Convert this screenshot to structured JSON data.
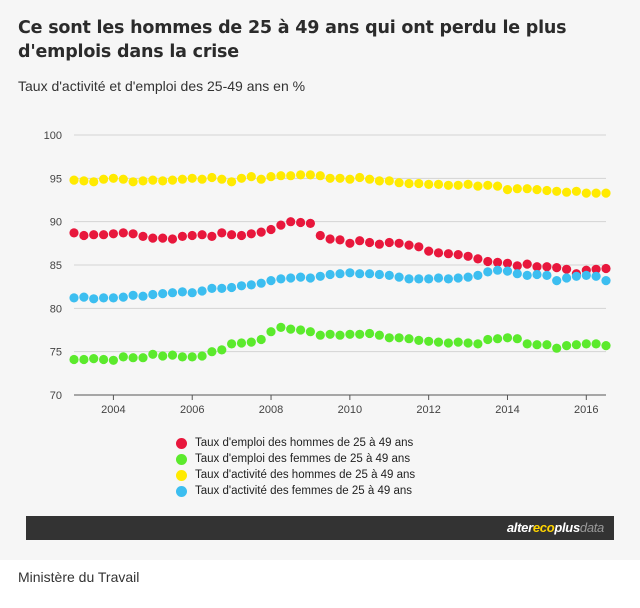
{
  "header": {
    "title": "Ce sont les hommes de 25 à 49 ans qui ont perdu le plus d'emplois dans la crise",
    "subtitle": "Taux d'activité et d'emploi des 25-49 ans en %"
  },
  "brand": {
    "part1": "alter",
    "part2": "eco",
    "part3": "plus",
    "part4": "data"
  },
  "source": "Ministère du Travail",
  "chart_data": {
    "type": "scatter",
    "xlim": [
      2003,
      2016.5
    ],
    "ylim": [
      70,
      100
    ],
    "yticks": [
      70,
      75,
      80,
      85,
      90,
      95,
      100
    ],
    "xticks": [
      2004,
      2006,
      2008,
      2010,
      2012,
      2014,
      2016
    ],
    "grid": "horizontal",
    "legend_position": "bottom",
    "series": [
      {
        "name": "Taux d'emploi des hommes de 25 à 49 ans",
        "color": "#e8173c",
        "x": [
          2003.0,
          2003.25,
          2003.5,
          2003.75,
          2004.0,
          2004.25,
          2004.5,
          2004.75,
          2005.0,
          2005.25,
          2005.5,
          2005.75,
          2006.0,
          2006.25,
          2006.5,
          2006.75,
          2007.0,
          2007.25,
          2007.5,
          2007.75,
          2008.0,
          2008.25,
          2008.5,
          2008.75,
          2009.0,
          2009.25,
          2009.5,
          2009.75,
          2010.0,
          2010.25,
          2010.5,
          2010.75,
          2011.0,
          2011.25,
          2011.5,
          2011.75,
          2012.0,
          2012.25,
          2012.5,
          2012.75,
          2013.0,
          2013.25,
          2013.5,
          2013.75,
          2014.0,
          2014.25,
          2014.5,
          2014.75,
          2015.0,
          2015.25,
          2015.5,
          2015.75,
          2016.0,
          2016.25,
          2016.5
        ],
        "y": [
          88.7,
          88.4,
          88.5,
          88.5,
          88.6,
          88.7,
          88.6,
          88.3,
          88.1,
          88.1,
          88.0,
          88.3,
          88.4,
          88.5,
          88.3,
          88.7,
          88.5,
          88.4,
          88.6,
          88.8,
          89.1,
          89.6,
          90.0,
          89.9,
          89.8,
          88.4,
          88.0,
          87.9,
          87.5,
          87.8,
          87.6,
          87.4,
          87.6,
          87.5,
          87.3,
          87.1,
          86.6,
          86.4,
          86.3,
          86.2,
          86.0,
          85.7,
          85.4,
          85.3,
          85.2,
          84.9,
          85.1,
          84.8,
          84.8,
          84.7,
          84.5,
          84.0,
          84.4,
          84.5,
          84.6
        ]
      },
      {
        "name": "Taux d'emploi des femmes de 25 à 49 ans",
        "color": "#5bea2c",
        "x": [
          2003.0,
          2003.25,
          2003.5,
          2003.75,
          2004.0,
          2004.25,
          2004.5,
          2004.75,
          2005.0,
          2005.25,
          2005.5,
          2005.75,
          2006.0,
          2006.25,
          2006.5,
          2006.75,
          2007.0,
          2007.25,
          2007.5,
          2007.75,
          2008.0,
          2008.25,
          2008.5,
          2008.75,
          2009.0,
          2009.25,
          2009.5,
          2009.75,
          2010.0,
          2010.25,
          2010.5,
          2010.75,
          2011.0,
          2011.25,
          2011.5,
          2011.75,
          2012.0,
          2012.25,
          2012.5,
          2012.75,
          2013.0,
          2013.25,
          2013.5,
          2013.75,
          2014.0,
          2014.25,
          2014.5,
          2014.75,
          2015.0,
          2015.25,
          2015.5,
          2015.75,
          2016.0,
          2016.25,
          2016.5
        ],
        "y": [
          74.1,
          74.1,
          74.2,
          74.1,
          74.0,
          74.4,
          74.3,
          74.3,
          74.7,
          74.5,
          74.6,
          74.4,
          74.4,
          74.5,
          75.0,
          75.2,
          75.9,
          76.0,
          76.1,
          76.4,
          77.3,
          77.8,
          77.6,
          77.5,
          77.3,
          76.9,
          77.0,
          76.9,
          77.0,
          77.0,
          77.1,
          76.9,
          76.6,
          76.6,
          76.5,
          76.3,
          76.2,
          76.1,
          76.0,
          76.1,
          76.0,
          75.9,
          76.4,
          76.5,
          76.6,
          76.5,
          75.9,
          75.8,
          75.8,
          75.4,
          75.7,
          75.8,
          75.9,
          75.9,
          75.7
        ]
      },
      {
        "name": "Taux d'activité des hommes de 25 à 49 ans",
        "color": "#ffea00",
        "x": [
          2003.0,
          2003.25,
          2003.5,
          2003.75,
          2004.0,
          2004.25,
          2004.5,
          2004.75,
          2005.0,
          2005.25,
          2005.5,
          2005.75,
          2006.0,
          2006.25,
          2006.5,
          2006.75,
          2007.0,
          2007.25,
          2007.5,
          2007.75,
          2008.0,
          2008.25,
          2008.5,
          2008.75,
          2009.0,
          2009.25,
          2009.5,
          2009.75,
          2010.0,
          2010.25,
          2010.5,
          2010.75,
          2011.0,
          2011.25,
          2011.5,
          2011.75,
          2012.0,
          2012.25,
          2012.5,
          2012.75,
          2013.0,
          2013.25,
          2013.5,
          2013.75,
          2014.0,
          2014.25,
          2014.5,
          2014.75,
          2015.0,
          2015.25,
          2015.5,
          2015.75,
          2016.0,
          2016.25,
          2016.5
        ],
        "y": [
          94.8,
          94.7,
          94.6,
          94.9,
          95.0,
          94.9,
          94.6,
          94.7,
          94.8,
          94.7,
          94.8,
          94.9,
          95.0,
          94.9,
          95.1,
          94.9,
          94.6,
          95.0,
          95.2,
          94.9,
          95.2,
          95.3,
          95.3,
          95.4,
          95.4,
          95.3,
          95.0,
          95.0,
          94.9,
          95.1,
          94.9,
          94.7,
          94.7,
          94.5,
          94.4,
          94.4,
          94.3,
          94.3,
          94.2,
          94.2,
          94.3,
          94.1,
          94.2,
          94.1,
          93.7,
          93.8,
          93.8,
          93.7,
          93.6,
          93.5,
          93.4,
          93.5,
          93.3,
          93.3,
          93.3
        ]
      },
      {
        "name": "Taux d'activité des femmes de 25 à 49 ans",
        "color": "#3cbef0",
        "x": [
          2003.0,
          2003.25,
          2003.5,
          2003.75,
          2004.0,
          2004.25,
          2004.5,
          2004.75,
          2005.0,
          2005.25,
          2005.5,
          2005.75,
          2006.0,
          2006.25,
          2006.5,
          2006.75,
          2007.0,
          2007.25,
          2007.5,
          2007.75,
          2008.0,
          2008.25,
          2008.5,
          2008.75,
          2009.0,
          2009.25,
          2009.5,
          2009.75,
          2010.0,
          2010.25,
          2010.5,
          2010.75,
          2011.0,
          2011.25,
          2011.5,
          2011.75,
          2012.0,
          2012.25,
          2012.5,
          2012.75,
          2013.0,
          2013.25,
          2013.5,
          2013.75,
          2014.0,
          2014.25,
          2014.5,
          2014.75,
          2015.0,
          2015.25,
          2015.5,
          2015.75,
          2016.0,
          2016.25,
          2016.5
        ],
        "y": [
          81.2,
          81.3,
          81.1,
          81.2,
          81.2,
          81.3,
          81.5,
          81.4,
          81.6,
          81.7,
          81.8,
          81.9,
          81.8,
          82.0,
          82.3,
          82.3,
          82.4,
          82.6,
          82.7,
          82.9,
          83.2,
          83.4,
          83.5,
          83.6,
          83.5,
          83.7,
          83.9,
          84.0,
          84.1,
          84.0,
          84.0,
          83.9,
          83.8,
          83.6,
          83.4,
          83.4,
          83.4,
          83.5,
          83.4,
          83.5,
          83.6,
          83.8,
          84.2,
          84.4,
          84.3,
          84.0,
          83.8,
          83.9,
          83.8,
          83.2,
          83.5,
          83.7,
          83.8,
          83.7,
          83.2
        ]
      }
    ]
  }
}
